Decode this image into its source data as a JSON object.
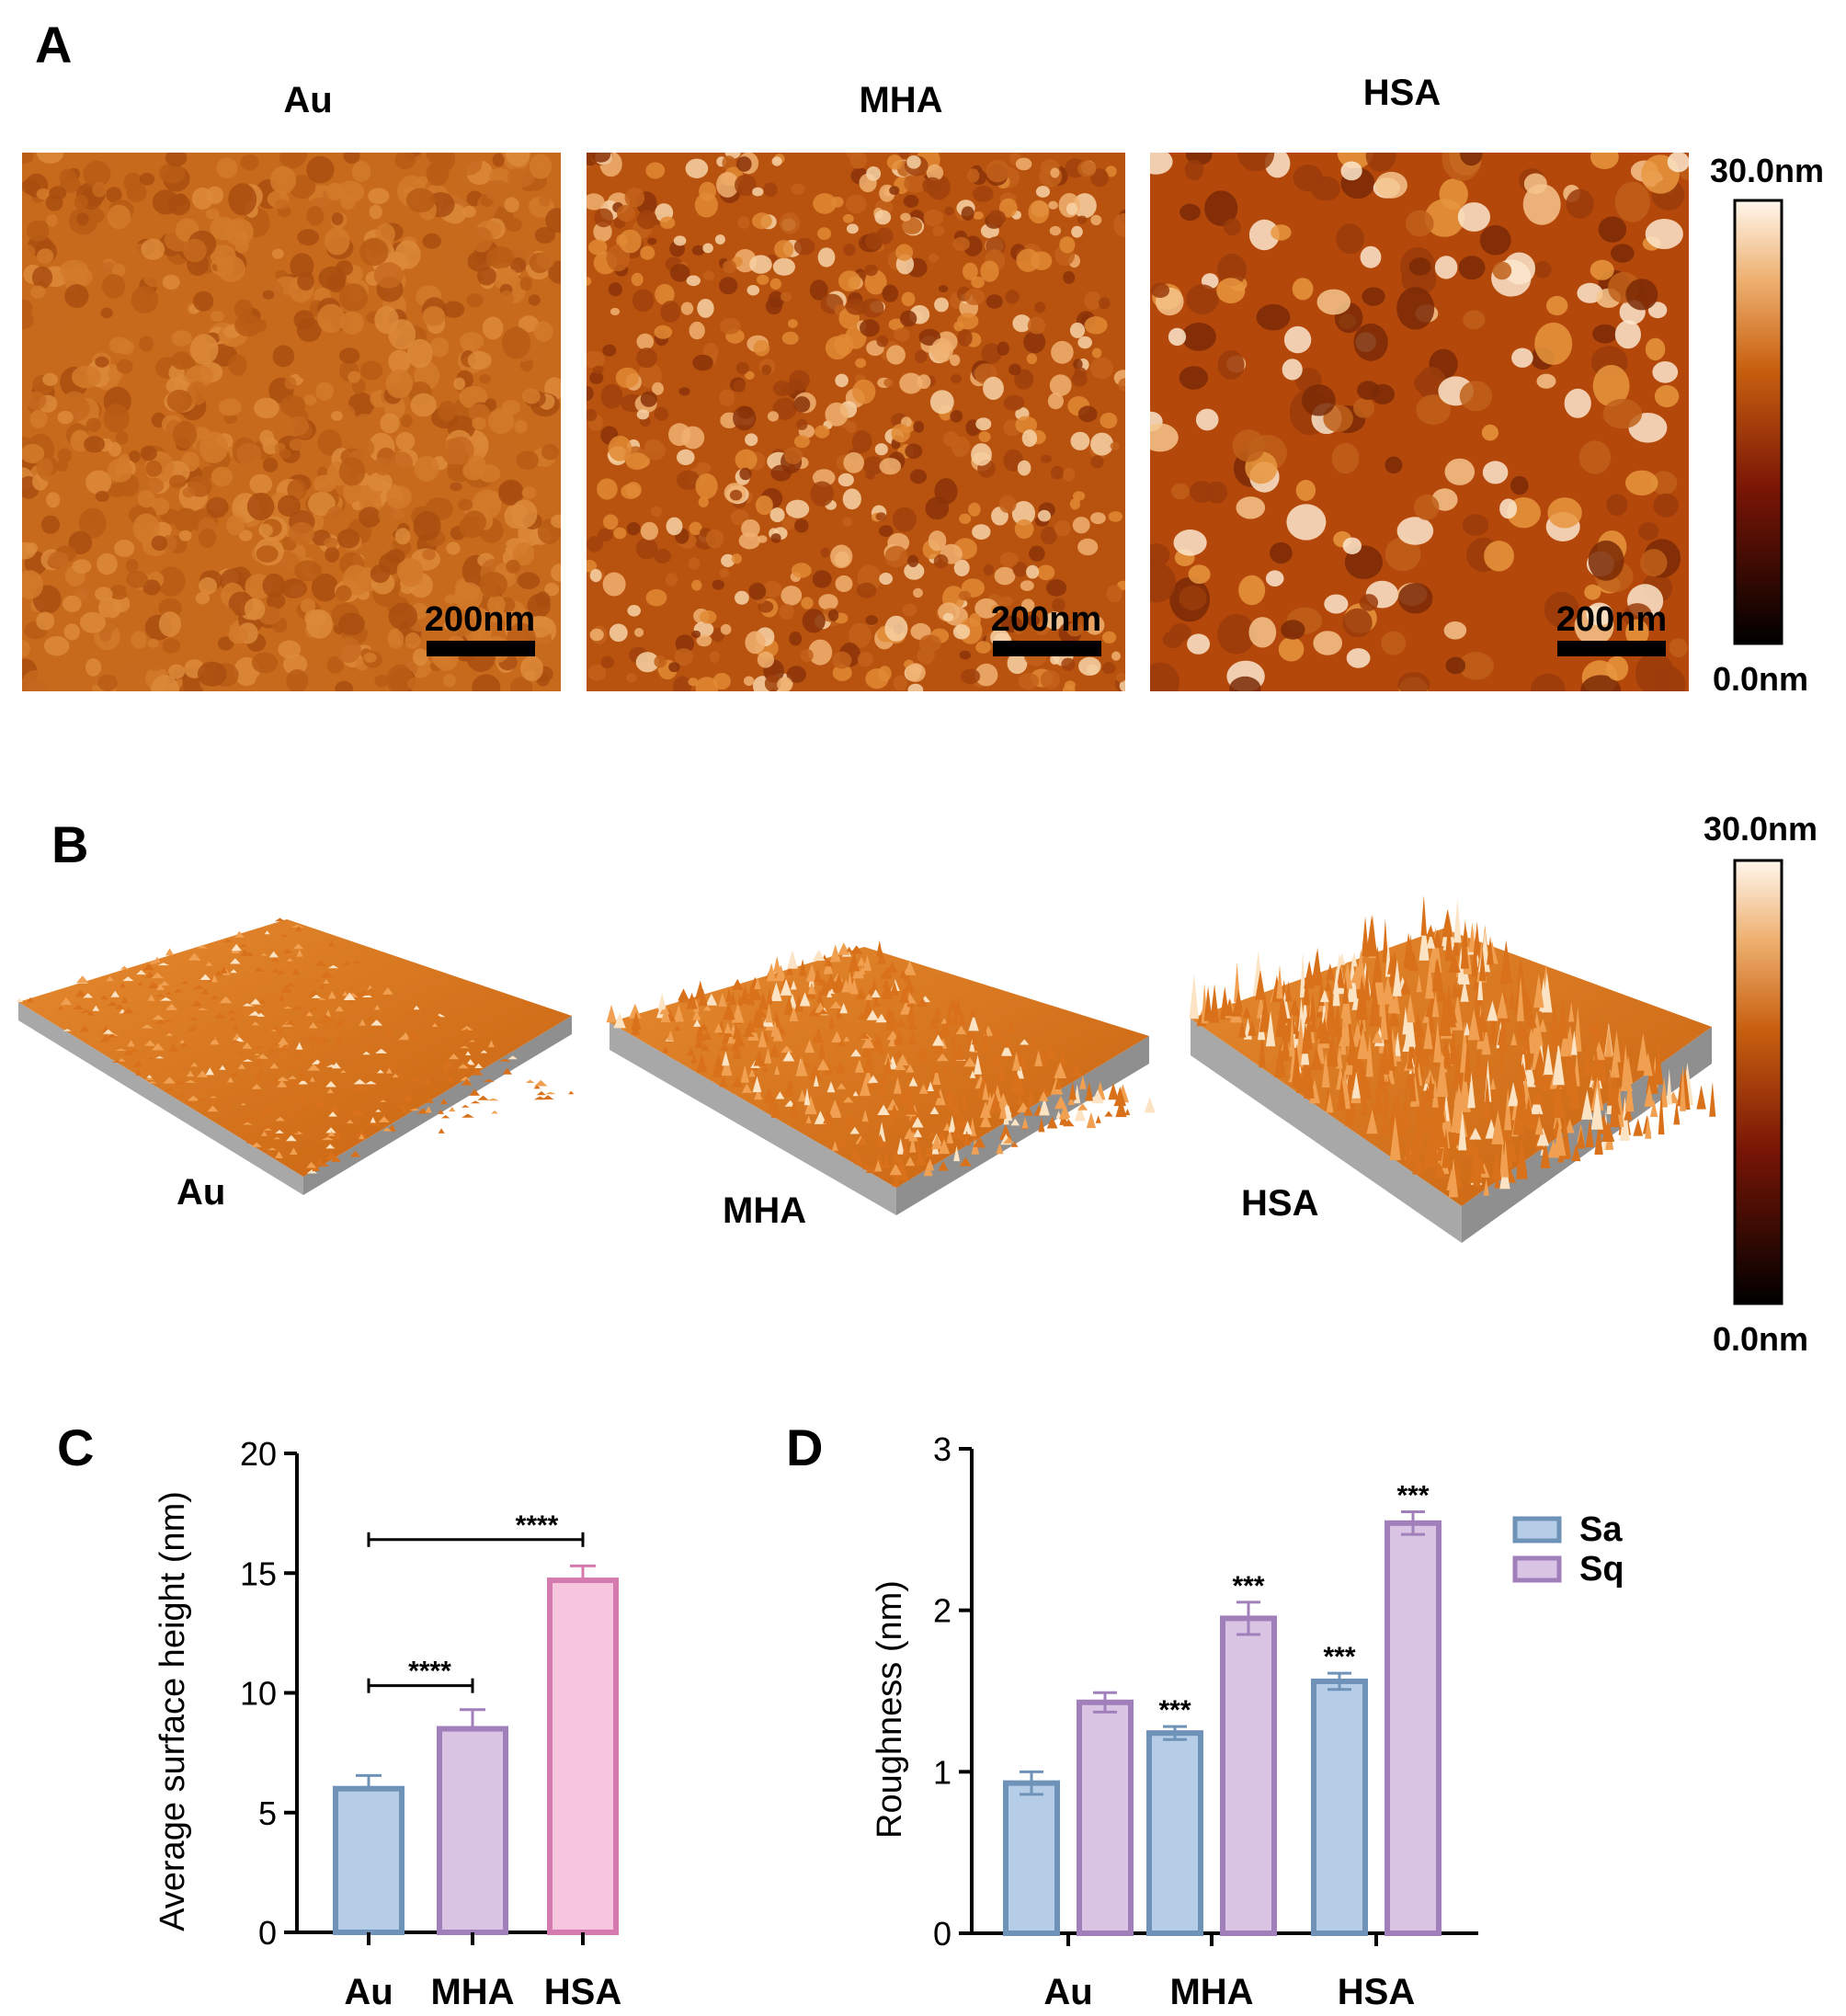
{
  "panel_a": {
    "letter": "A",
    "titles": [
      "Au",
      "MHA",
      "HSA"
    ],
    "scale_bar": "200nm",
    "colorbar": {
      "max": "30.0nm",
      "min": "0.0nm"
    }
  },
  "panel_b": {
    "letter": "B",
    "labels": [
      "Au",
      "MHA",
      "HSA"
    ],
    "colorbar": {
      "max": "30.0nm",
      "min": "0.0nm"
    }
  },
  "colors": {
    "afm_low": "#000000",
    "afm_mid": "#b84a0a",
    "afm_high": "#fff6ec",
    "bar_blue_fill": "#b5cde6",
    "bar_blue_edge": "#6f92b8",
    "bar_purple_fill": "#d9c4e4",
    "bar_purple_edge": "#a07fbb",
    "bar_pink_fill": "#f6c6de",
    "bar_pink_edge": "#d57aae"
  },
  "chart_data": [
    {
      "panel": "C",
      "type": "bar",
      "categories": [
        "Au",
        "MHA",
        "HSA"
      ],
      "values": [
        6.0,
        8.5,
        14.7
      ],
      "errors": [
        0.55,
        0.8,
        0.6
      ],
      "ylabel": "Average surface height (nm)",
      "ylim": [
        0,
        20
      ],
      "yticks": [
        0,
        5,
        10,
        15,
        20
      ],
      "significance": [
        {
          "from": 0,
          "to": 1,
          "y": 10.3,
          "label": "****"
        },
        {
          "from": 0,
          "to": 2,
          "y": 16.4,
          "label": "****"
        }
      ]
    },
    {
      "panel": "D",
      "type": "bar",
      "categories": [
        "Au",
        "MHA",
        "HSA"
      ],
      "series": [
        {
          "name": "Sa",
          "values": [
            0.93,
            1.24,
            1.56
          ],
          "errors": [
            0.07,
            0.04,
            0.05
          ],
          "marks": [
            "",
            "***",
            "***"
          ]
        },
        {
          "name": "Sq",
          "values": [
            1.43,
            1.95,
            2.54
          ],
          "errors": [
            0.06,
            0.1,
            0.07
          ],
          "marks": [
            "",
            "***",
            "***"
          ]
        }
      ],
      "ylabel": "Roughness (nm)",
      "ylim": [
        0,
        3
      ],
      "yticks": [
        0,
        1,
        2,
        3
      ],
      "legend": "top-right"
    }
  ]
}
